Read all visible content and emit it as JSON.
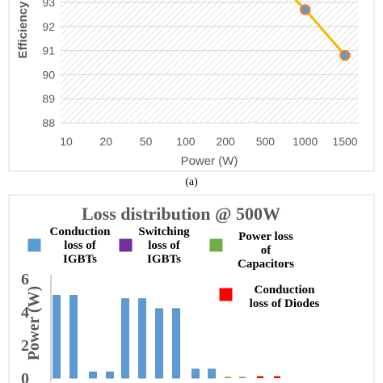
{
  "chart_data": [
    {
      "type": "line",
      "title": "",
      "xlabel": "Power (W)",
      "ylabel": "Efficiency",
      "categories": [
        "10",
        "20",
        "50",
        "100",
        "200",
        "500",
        "1000",
        "1500"
      ],
      "ylim": [
        88,
        94
      ],
      "yticks": [
        "88",
        "89",
        "90",
        "91",
        "92",
        "93"
      ],
      "grid": true,
      "series": [
        {
          "values": [
            null,
            null,
            null,
            null,
            null,
            94.4,
            92.7,
            90.8
          ],
          "color": "#F5B800",
          "marker_color": "#5B9BD5",
          "marker_edge": "#ED7D31"
        }
      ],
      "caption": "(a)"
    },
    {
      "type": "bar",
      "title": "Loss distribution @ 500W",
      "ylabel": "Power (W)",
      "ylim": [
        0,
        6
      ],
      "yticks": [
        "0",
        "2",
        "4",
        "6"
      ],
      "legend": [
        {
          "label_lines": [
            "Conduction",
            "loss of",
            "IGBTs"
          ],
          "color": "#5B9BD5"
        },
        {
          "label_lines": [
            "Switching",
            "loss of",
            "IGBTs"
          ],
          "color": "#7030A0"
        },
        {
          "label_lines": [
            "Power loss",
            "of",
            "Capacitors"
          ],
          "color": "#70AD47"
        },
        {
          "label_lines": [
            "Conduction",
            "loss of Diodes"
          ],
          "color": "#FF0000"
        }
      ],
      "series": [
        {
          "name": "Conduction loss of IGBTs",
          "color": "#5B9BD5",
          "values": [
            5.0,
            5.0,
            0.38,
            0.38,
            4.8,
            4.8,
            4.2,
            4.2,
            0.55,
            0.55
          ]
        },
        {
          "name": "Conduction loss of Diodes",
          "color": "#FF0000",
          "values": [
            0.12,
            0.12
          ]
        },
        {
          "name": "Power loss of Capacitors",
          "color": "#70AD47",
          "values": [
            0.08,
            0.08
          ]
        }
      ]
    }
  ]
}
